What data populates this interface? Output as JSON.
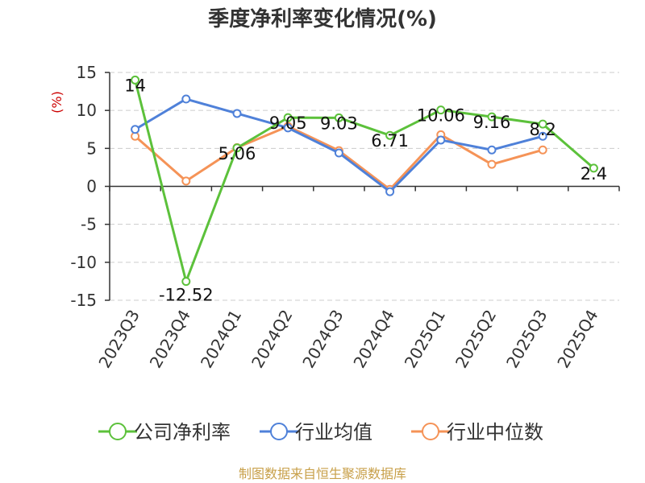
{
  "chart_data": {
    "type": "line",
    "title": "季度净利率变化情况(%)",
    "xlabel": "",
    "ylabel": "(%)",
    "ylim": [
      -15,
      15
    ],
    "yticks": [
      15,
      10,
      5,
      0,
      -5,
      -10,
      -15
    ],
    "grid": true,
    "legend_position": "bottom",
    "categories": [
      "2023Q3",
      "2023Q4",
      "2024Q1",
      "2024Q2",
      "2024Q3",
      "2024Q4",
      "2025Q1",
      "2025Q2",
      "2025Q3",
      "2025Q4"
    ],
    "series": [
      {
        "name": "公司净利率",
        "color": "#5cc13b",
        "values": [
          14,
          -12.52,
          5.06,
          9.05,
          9.03,
          6.71,
          10.06,
          9.16,
          8.2,
          2.4
        ],
        "labels": [
          "14",
          "-12.52",
          "5.06",
          "9.05",
          "9.03",
          "6.71",
          "10.06",
          "9.16",
          "8.2",
          "2.4"
        ]
      },
      {
        "name": "行业均值",
        "color": "#4f81d9",
        "values": [
          7.5,
          11.5,
          9.6,
          7.7,
          4.4,
          -0.7,
          6.1,
          4.8,
          6.6,
          null
        ]
      },
      {
        "name": "行业中位数",
        "color": "#f59357",
        "values": [
          6.6,
          0.7,
          5.1,
          7.9,
          4.7,
          -0.4,
          6.8,
          2.9,
          4.8,
          null
        ]
      }
    ]
  },
  "source_text": "制图数据来自恒生聚源数据库"
}
